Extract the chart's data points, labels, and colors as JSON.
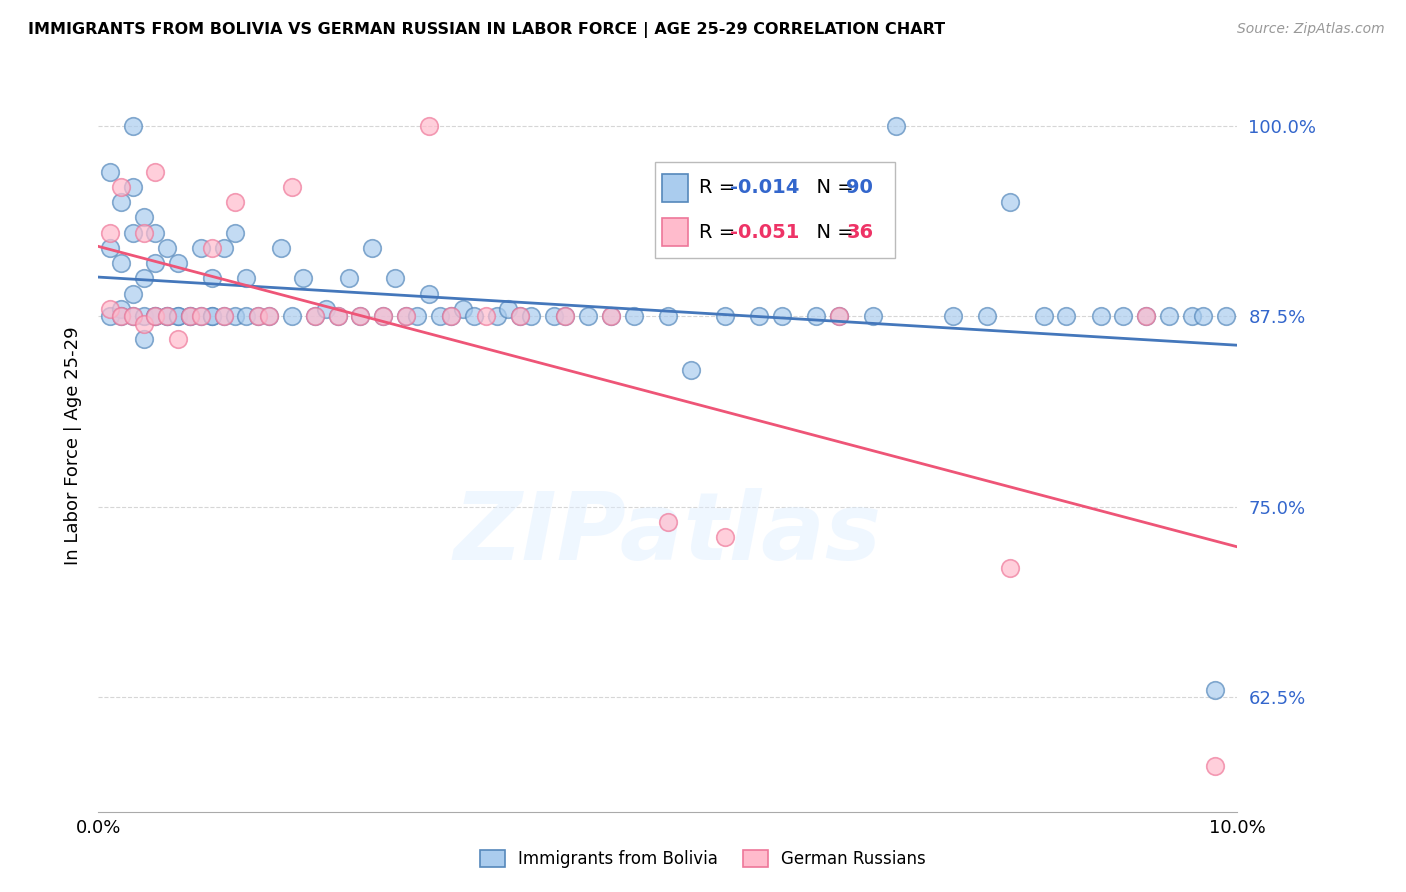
{
  "title": "IMMIGRANTS FROM BOLIVIA VS GERMAN RUSSIAN IN LABOR FORCE | AGE 25-29 CORRELATION CHART",
  "source": "Source: ZipAtlas.com",
  "ylabel": "In Labor Force | Age 25-29",
  "xmin": 0.0,
  "xmax": 0.1,
  "ymin": 0.55,
  "ymax": 1.03,
  "yticks": [
    0.625,
    0.75,
    0.875,
    1.0
  ],
  "ytick_labels": [
    "62.5%",
    "75.0%",
    "87.5%",
    "100.0%"
  ],
  "xticks": [
    0.0,
    0.02,
    0.04,
    0.06,
    0.08,
    0.1
  ],
  "xtick_labels": [
    "0.0%",
    "",
    "",
    "",
    "",
    "10.0%"
  ],
  "bolivia_color_face": "#AACCEE",
  "bolivia_color_edge": "#5588BB",
  "german_color_face": "#FFBBCC",
  "german_color_edge": "#EE7799",
  "bolivia_R": "-0.014",
  "bolivia_N": "90",
  "german_R": "-0.051",
  "german_N": "36",
  "bolivia_line_color": "#4477BB",
  "german_line_color": "#EE5577",
  "bolivia_scatter_x": [
    0.001,
    0.001,
    0.001,
    0.002,
    0.002,
    0.002,
    0.002,
    0.003,
    0.003,
    0.003,
    0.003,
    0.003,
    0.004,
    0.004,
    0.004,
    0.004,
    0.005,
    0.005,
    0.005,
    0.005,
    0.006,
    0.006,
    0.006,
    0.007,
    0.007,
    0.007,
    0.008,
    0.008,
    0.009,
    0.009,
    0.01,
    0.01,
    0.01,
    0.011,
    0.011,
    0.012,
    0.012,
    0.013,
    0.013,
    0.014,
    0.015,
    0.016,
    0.017,
    0.018,
    0.019,
    0.02,
    0.021,
    0.022,
    0.023,
    0.024,
    0.025,
    0.026,
    0.027,
    0.028,
    0.029,
    0.03,
    0.031,
    0.032,
    0.033,
    0.035,
    0.036,
    0.037,
    0.038,
    0.04,
    0.041,
    0.043,
    0.045,
    0.047,
    0.05,
    0.052,
    0.055,
    0.058,
    0.06,
    0.063,
    0.065,
    0.068,
    0.07,
    0.075,
    0.078,
    0.08,
    0.083,
    0.085,
    0.088,
    0.09,
    0.092,
    0.094,
    0.096,
    0.097,
    0.098,
    0.099
  ],
  "bolivia_scatter_y": [
    0.875,
    0.92,
    0.97,
    0.88,
    0.91,
    0.95,
    0.875,
    0.875,
    0.89,
    0.93,
    0.96,
    1.0,
    0.86,
    0.875,
    0.9,
    0.94,
    0.875,
    0.875,
    0.91,
    0.93,
    0.875,
    0.875,
    0.92,
    0.875,
    0.875,
    0.91,
    0.875,
    0.875,
    0.875,
    0.92,
    0.875,
    0.875,
    0.9,
    0.875,
    0.92,
    0.875,
    0.93,
    0.875,
    0.9,
    0.875,
    0.875,
    0.92,
    0.875,
    0.9,
    0.875,
    0.88,
    0.875,
    0.9,
    0.875,
    0.92,
    0.875,
    0.9,
    0.875,
    0.875,
    0.89,
    0.875,
    0.875,
    0.88,
    0.875,
    0.875,
    0.88,
    0.875,
    0.875,
    0.875,
    0.875,
    0.875,
    0.875,
    0.875,
    0.875,
    0.84,
    0.875,
    0.875,
    0.875,
    0.875,
    0.875,
    0.875,
    1.0,
    0.875,
    0.875,
    0.95,
    0.875,
    0.875,
    0.875,
    0.875,
    0.875,
    0.875,
    0.875,
    0.875,
    0.63,
    0.875
  ],
  "german_scatter_x": [
    0.001,
    0.001,
    0.002,
    0.002,
    0.003,
    0.004,
    0.004,
    0.005,
    0.005,
    0.006,
    0.007,
    0.008,
    0.009,
    0.01,
    0.011,
    0.012,
    0.014,
    0.015,
    0.017,
    0.019,
    0.021,
    0.023,
    0.025,
    0.027,
    0.029,
    0.031,
    0.034,
    0.037,
    0.041,
    0.045,
    0.05,
    0.055,
    0.065,
    0.08,
    0.092,
    0.098
  ],
  "german_scatter_y": [
    0.88,
    0.93,
    0.875,
    0.96,
    0.875,
    0.87,
    0.93,
    0.875,
    0.97,
    0.875,
    0.86,
    0.875,
    0.875,
    0.92,
    0.875,
    0.95,
    0.875,
    0.875,
    0.96,
    0.875,
    0.875,
    0.875,
    0.875,
    0.875,
    1.0,
    0.875,
    0.875,
    0.875,
    0.875,
    0.875,
    0.74,
    0.73,
    0.875,
    0.71,
    0.875,
    0.58
  ],
  "watermark": "ZIPatlas",
  "legend_R_color_bolivia": "#3366CC",
  "legend_R_color_german": "#EE3366",
  "legend_N_color_bolivia": "#3366CC",
  "legend_N_color_german": "#EE3366"
}
